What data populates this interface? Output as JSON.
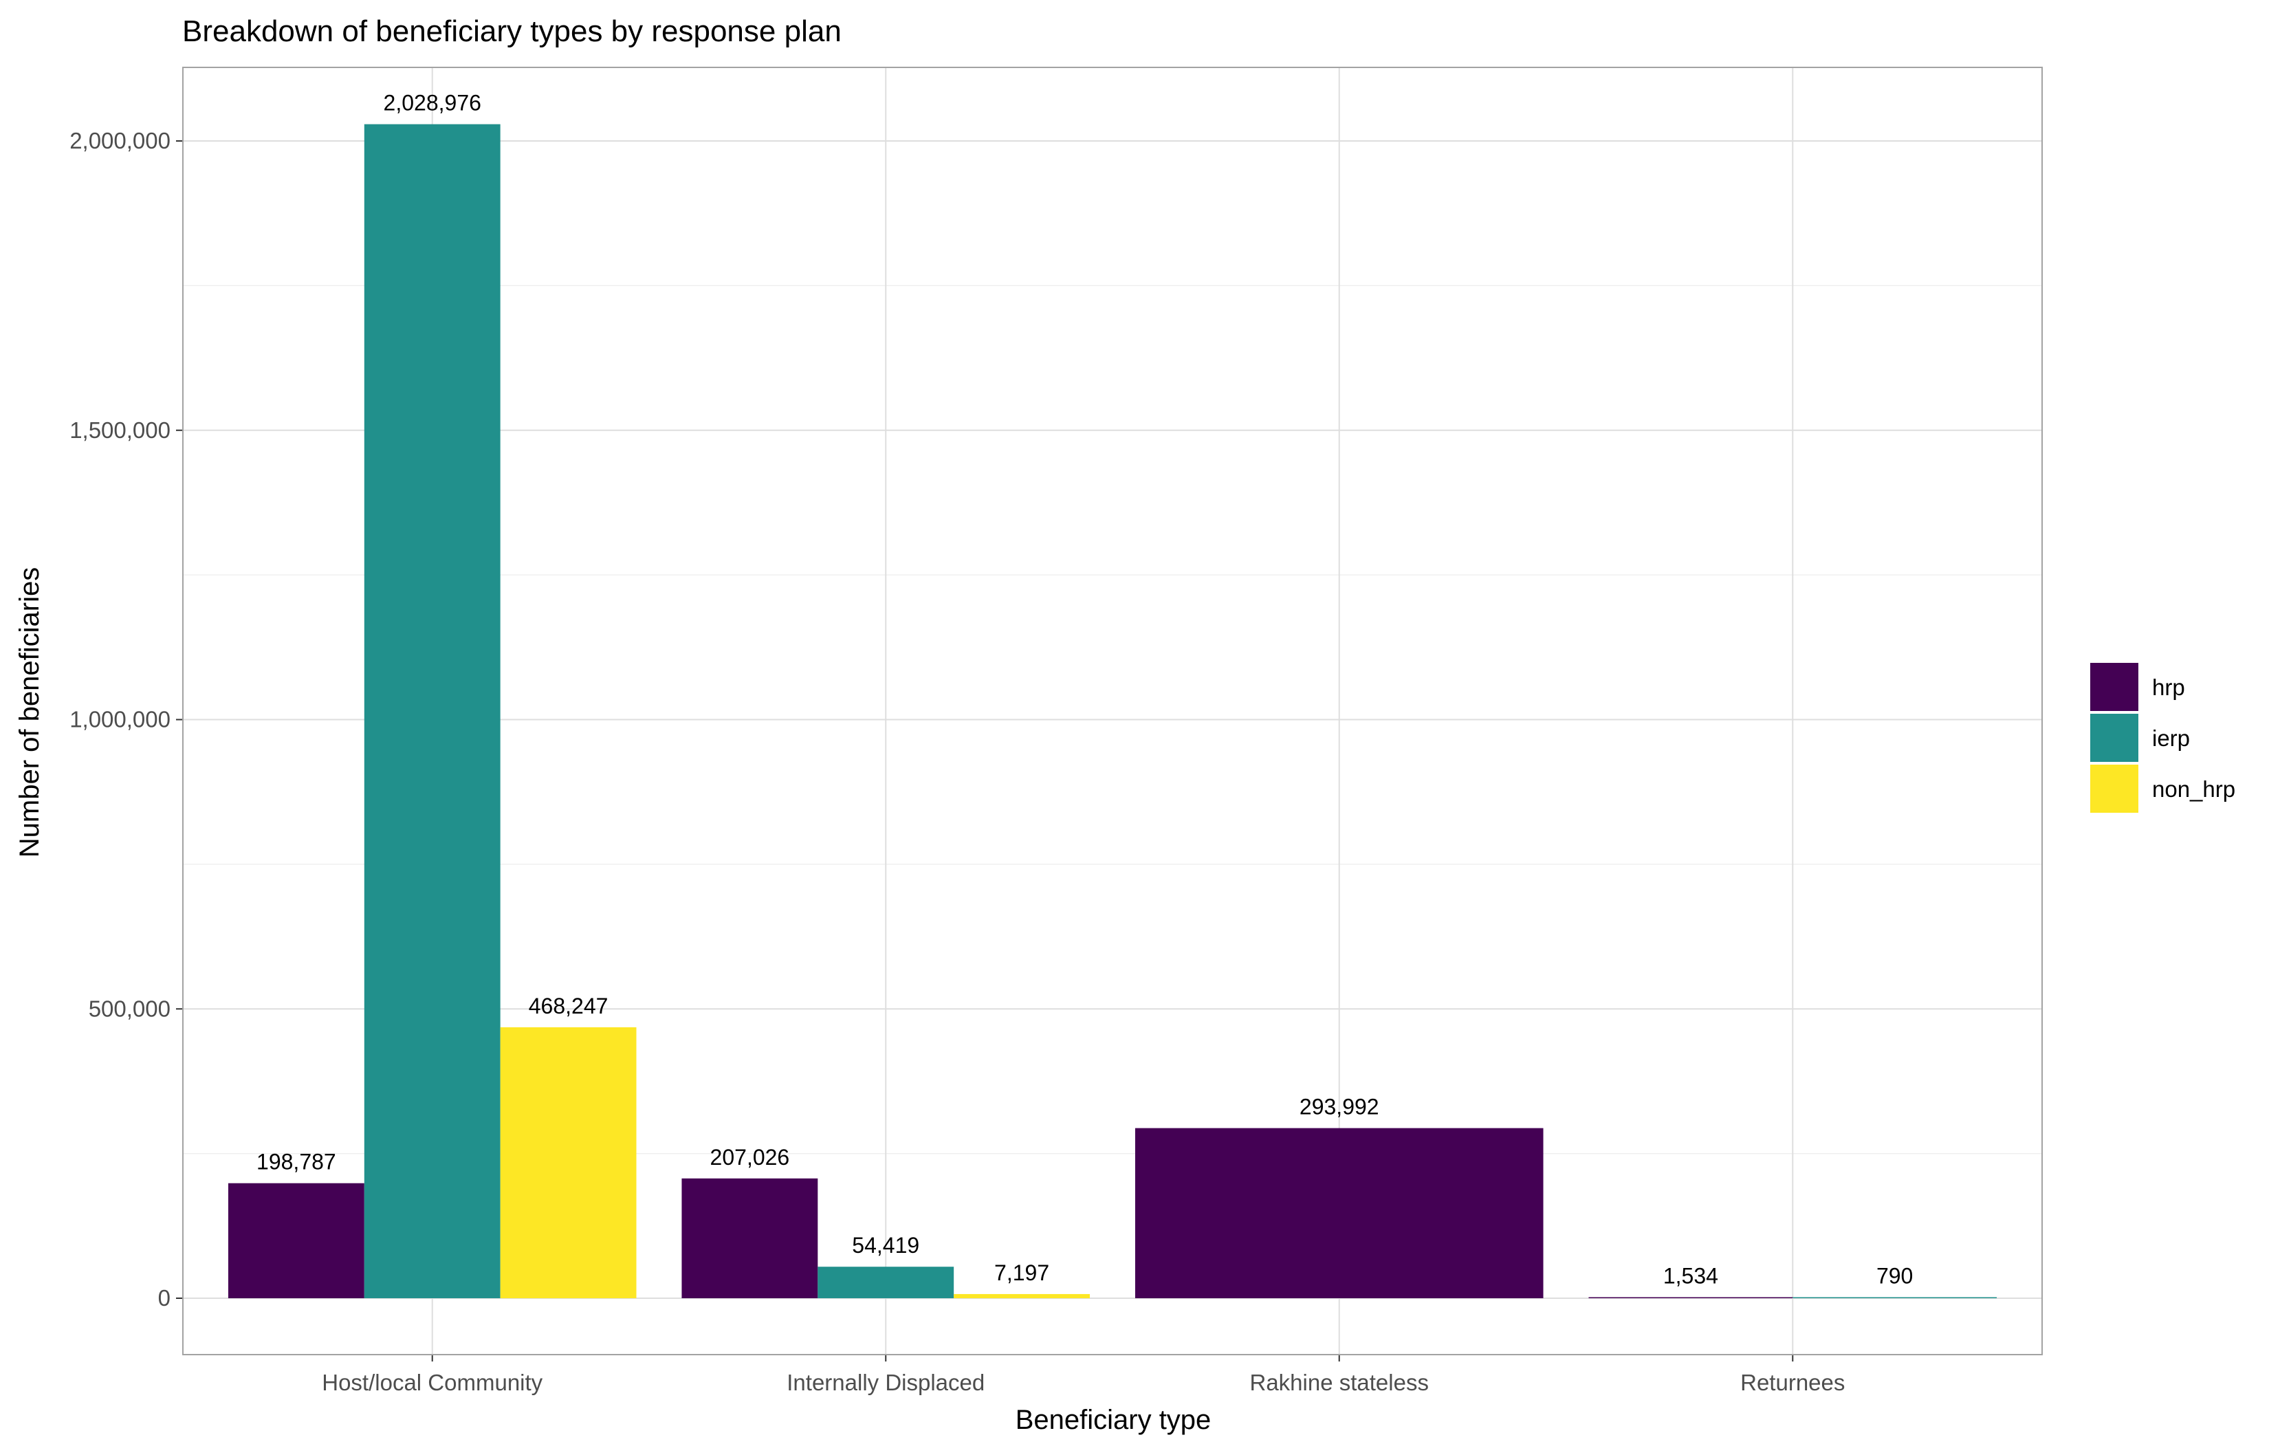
{
  "chart_data": {
    "type": "bar",
    "title": "Breakdown of beneficiary types by response plan",
    "xlabel": "Beneficiary type",
    "ylabel": "Number of beneficiaries",
    "ylim": [
      -100000,
      2120000
    ],
    "yticks": [
      0,
      500000,
      1000000,
      1500000,
      2000000
    ],
    "ytick_labels": [
      "0",
      "500,000",
      "1,000,000",
      "1,500,000",
      "2,000,000"
    ],
    "grid": true,
    "legend_position": "right",
    "categories": [
      "Host/local Community",
      "Internally Displaced",
      "Rakhine stateless",
      "Returnees"
    ],
    "series": [
      {
        "name": "hrp",
        "color": "#440154",
        "values": [
          198787,
          207026,
          293992,
          1534
        ]
      },
      {
        "name": "ierp",
        "color": "#21908C",
        "values": [
          2028976,
          54419,
          null,
          790
        ]
      },
      {
        "name": "non_hrp",
        "color": "#FDE725",
        "values": [
          468247,
          7197,
          null,
          null
        ]
      }
    ],
    "bar_labels": [
      [
        "198,787",
        "207,026",
        "293,992",
        "1,534"
      ],
      [
        "2,028,976",
        "54,419",
        "",
        "790"
      ],
      [
        "468,247",
        "7,197",
        "",
        ""
      ]
    ]
  }
}
